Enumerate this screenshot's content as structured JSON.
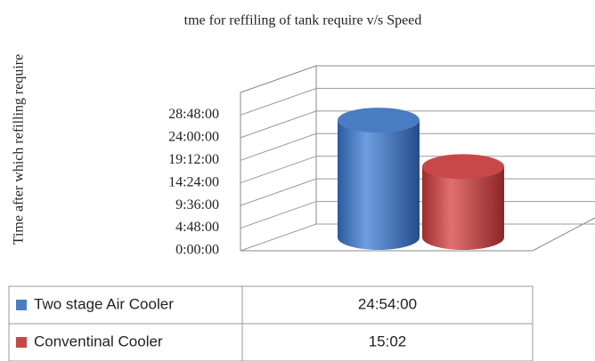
{
  "chart_data": {
    "type": "bar3d",
    "title": "tme for reffiling of tank require v/s Speed",
    "y_label": "Time after which refilling require",
    "categories": [
      null
    ],
    "series": [
      {
        "name": "Two stage Air Cooler",
        "color": "#4a7cc4",
        "values": [
          24.9
        ],
        "value_labels": [
          "24:54:00"
        ]
      },
      {
        "name": "Conventinal Cooler",
        "color": "#c8484a",
        "values": [
          15.033
        ],
        "value_labels": [
          "15:02"
        ]
      }
    ],
    "ylim": [
      0,
      33.6
    ],
    "yticks": [
      {
        "value": 0,
        "label": "0:00:00"
      },
      {
        "value": 4.8,
        "label": "4:48:00"
      },
      {
        "value": 9.6,
        "label": "9:36:00"
      },
      {
        "value": 14.4,
        "label": "14:24:00"
      },
      {
        "value": 19.2,
        "label": "19:12:00"
      },
      {
        "value": 24,
        "label": "24:00:00"
      },
      {
        "value": 28.8,
        "label": "28:48:00"
      }
    ],
    "grid": true
  }
}
